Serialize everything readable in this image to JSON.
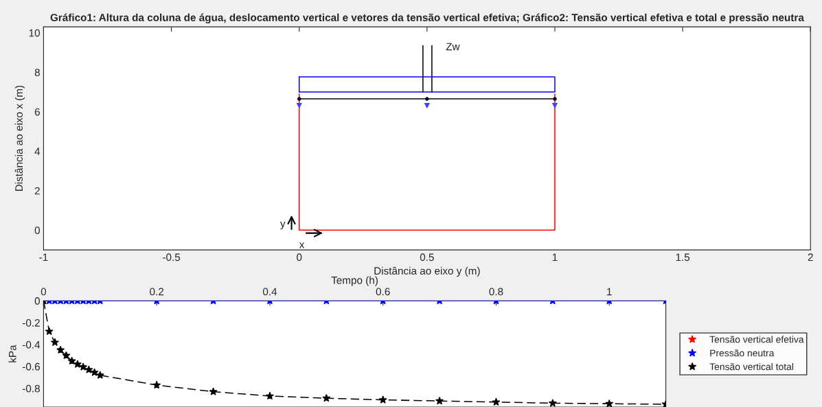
{
  "chart_data": [
    {
      "type": "line",
      "title": "Gráfico1: Altura da coluna de água, deslocamento vertical e vetores da tensão vertical efetiva; Gráfico2: Tensão vertical efetiva e total e pressão neutra",
      "xlabel": "Distância ao eixo y (m)",
      "ylabel": "Distância ao eixo x (m)",
      "xlim": [
        -1,
        2
      ],
      "ylim": [
        -1,
        10.3
      ],
      "xticks": [
        -1,
        -0.5,
        0,
        0.5,
        1,
        1.5,
        2
      ],
      "yticks": [
        0,
        2,
        4,
        6,
        8,
        10
      ],
      "grid": false,
      "legend": false,
      "series": [
        {
          "color": "#ff0000",
          "x": [
            0,
            0,
            1,
            1
          ],
          "values": [
            6.9,
            0,
            0,
            6.9
          ]
        },
        {
          "color": "#0000ff",
          "x": [
            0,
            1,
            1,
            0
          ],
          "values": [
            7.77,
            7.77,
            7.0,
            7.0
          ]
        },
        {
          "color": "#0000ff",
          "x": [
            0,
            0
          ],
          "values": [
            7.0,
            7.77
          ]
        },
        {
          "color": "#000000",
          "x": [
            0,
            0.5,
            1
          ],
          "values": [
            6.65,
            6.65,
            6.65
          ],
          "marker": "circle"
        },
        {
          "color": "#000000",
          "x": [
            0.484,
            0.484
          ],
          "values": [
            7.0,
            9.35
          ]
        },
        {
          "color": "#000000",
          "x": [
            0.519,
            0.519
          ],
          "values": [
            7.0,
            9.35
          ]
        },
        {
          "type": "scatter",
          "color": "#4040ff",
          "x": [
            0,
            0.5,
            1
          ],
          "values": [
            6.3,
            6.3,
            6.3
          ],
          "marker": "triangle"
        }
      ],
      "annotations": [
        "Zw",
        "x",
        "y"
      ]
    },
    {
      "type": "line",
      "xlabel": "Tempo (h)",
      "ylabel": "kPa",
      "xlim": [
        0,
        1.1
      ],
      "ylim": [
        -0.97,
        0
      ],
      "xticks": [
        0,
        0.2,
        0.4,
        0.6,
        0.8,
        1
      ],
      "yticks": [
        0,
        -0.2,
        -0.4,
        -0.6,
        -0.8
      ],
      "grid": false,
      "legend": "right",
      "x": [
        0,
        0.01,
        0.02,
        0.03,
        0.04,
        0.05,
        0.06,
        0.07,
        0.08,
        0.09,
        0.1,
        0.2,
        0.3,
        0.4,
        0.5,
        0.6,
        0.7,
        0.8,
        0.9,
        1.0,
        1.1
      ],
      "series": [
        {
          "name": "Tensão vertical efetiva",
          "color": "#ff0000",
          "marker": "star",
          "values": [
            null,
            null,
            null,
            null,
            null,
            null,
            null,
            null,
            null,
            null,
            null,
            null,
            null,
            null,
            null,
            null,
            null,
            null,
            null,
            null,
            null
          ]
        },
        {
          "name": "Pressão neutra",
          "color": "#0000ff",
          "marker": "star",
          "line_style": "solid",
          "values": [
            0,
            0,
            0,
            0,
            0,
            0,
            0,
            0,
            0,
            0,
            0,
            0,
            0,
            0,
            0,
            0,
            0,
            0,
            0,
            0,
            0
          ]
        },
        {
          "name": "Tensão vertical total",
          "color": "#000000",
          "marker": "star",
          "line_style": "dashed",
          "values": [
            0,
            -0.28,
            -0.38,
            -0.45,
            -0.5,
            -0.55,
            -0.58,
            -0.605,
            -0.63,
            -0.655,
            -0.68,
            -0.77,
            -0.83,
            -0.87,
            -0.89,
            -0.905,
            -0.915,
            -0.925,
            -0.935,
            -0.94,
            -0.945
          ]
        }
      ]
    }
  ]
}
